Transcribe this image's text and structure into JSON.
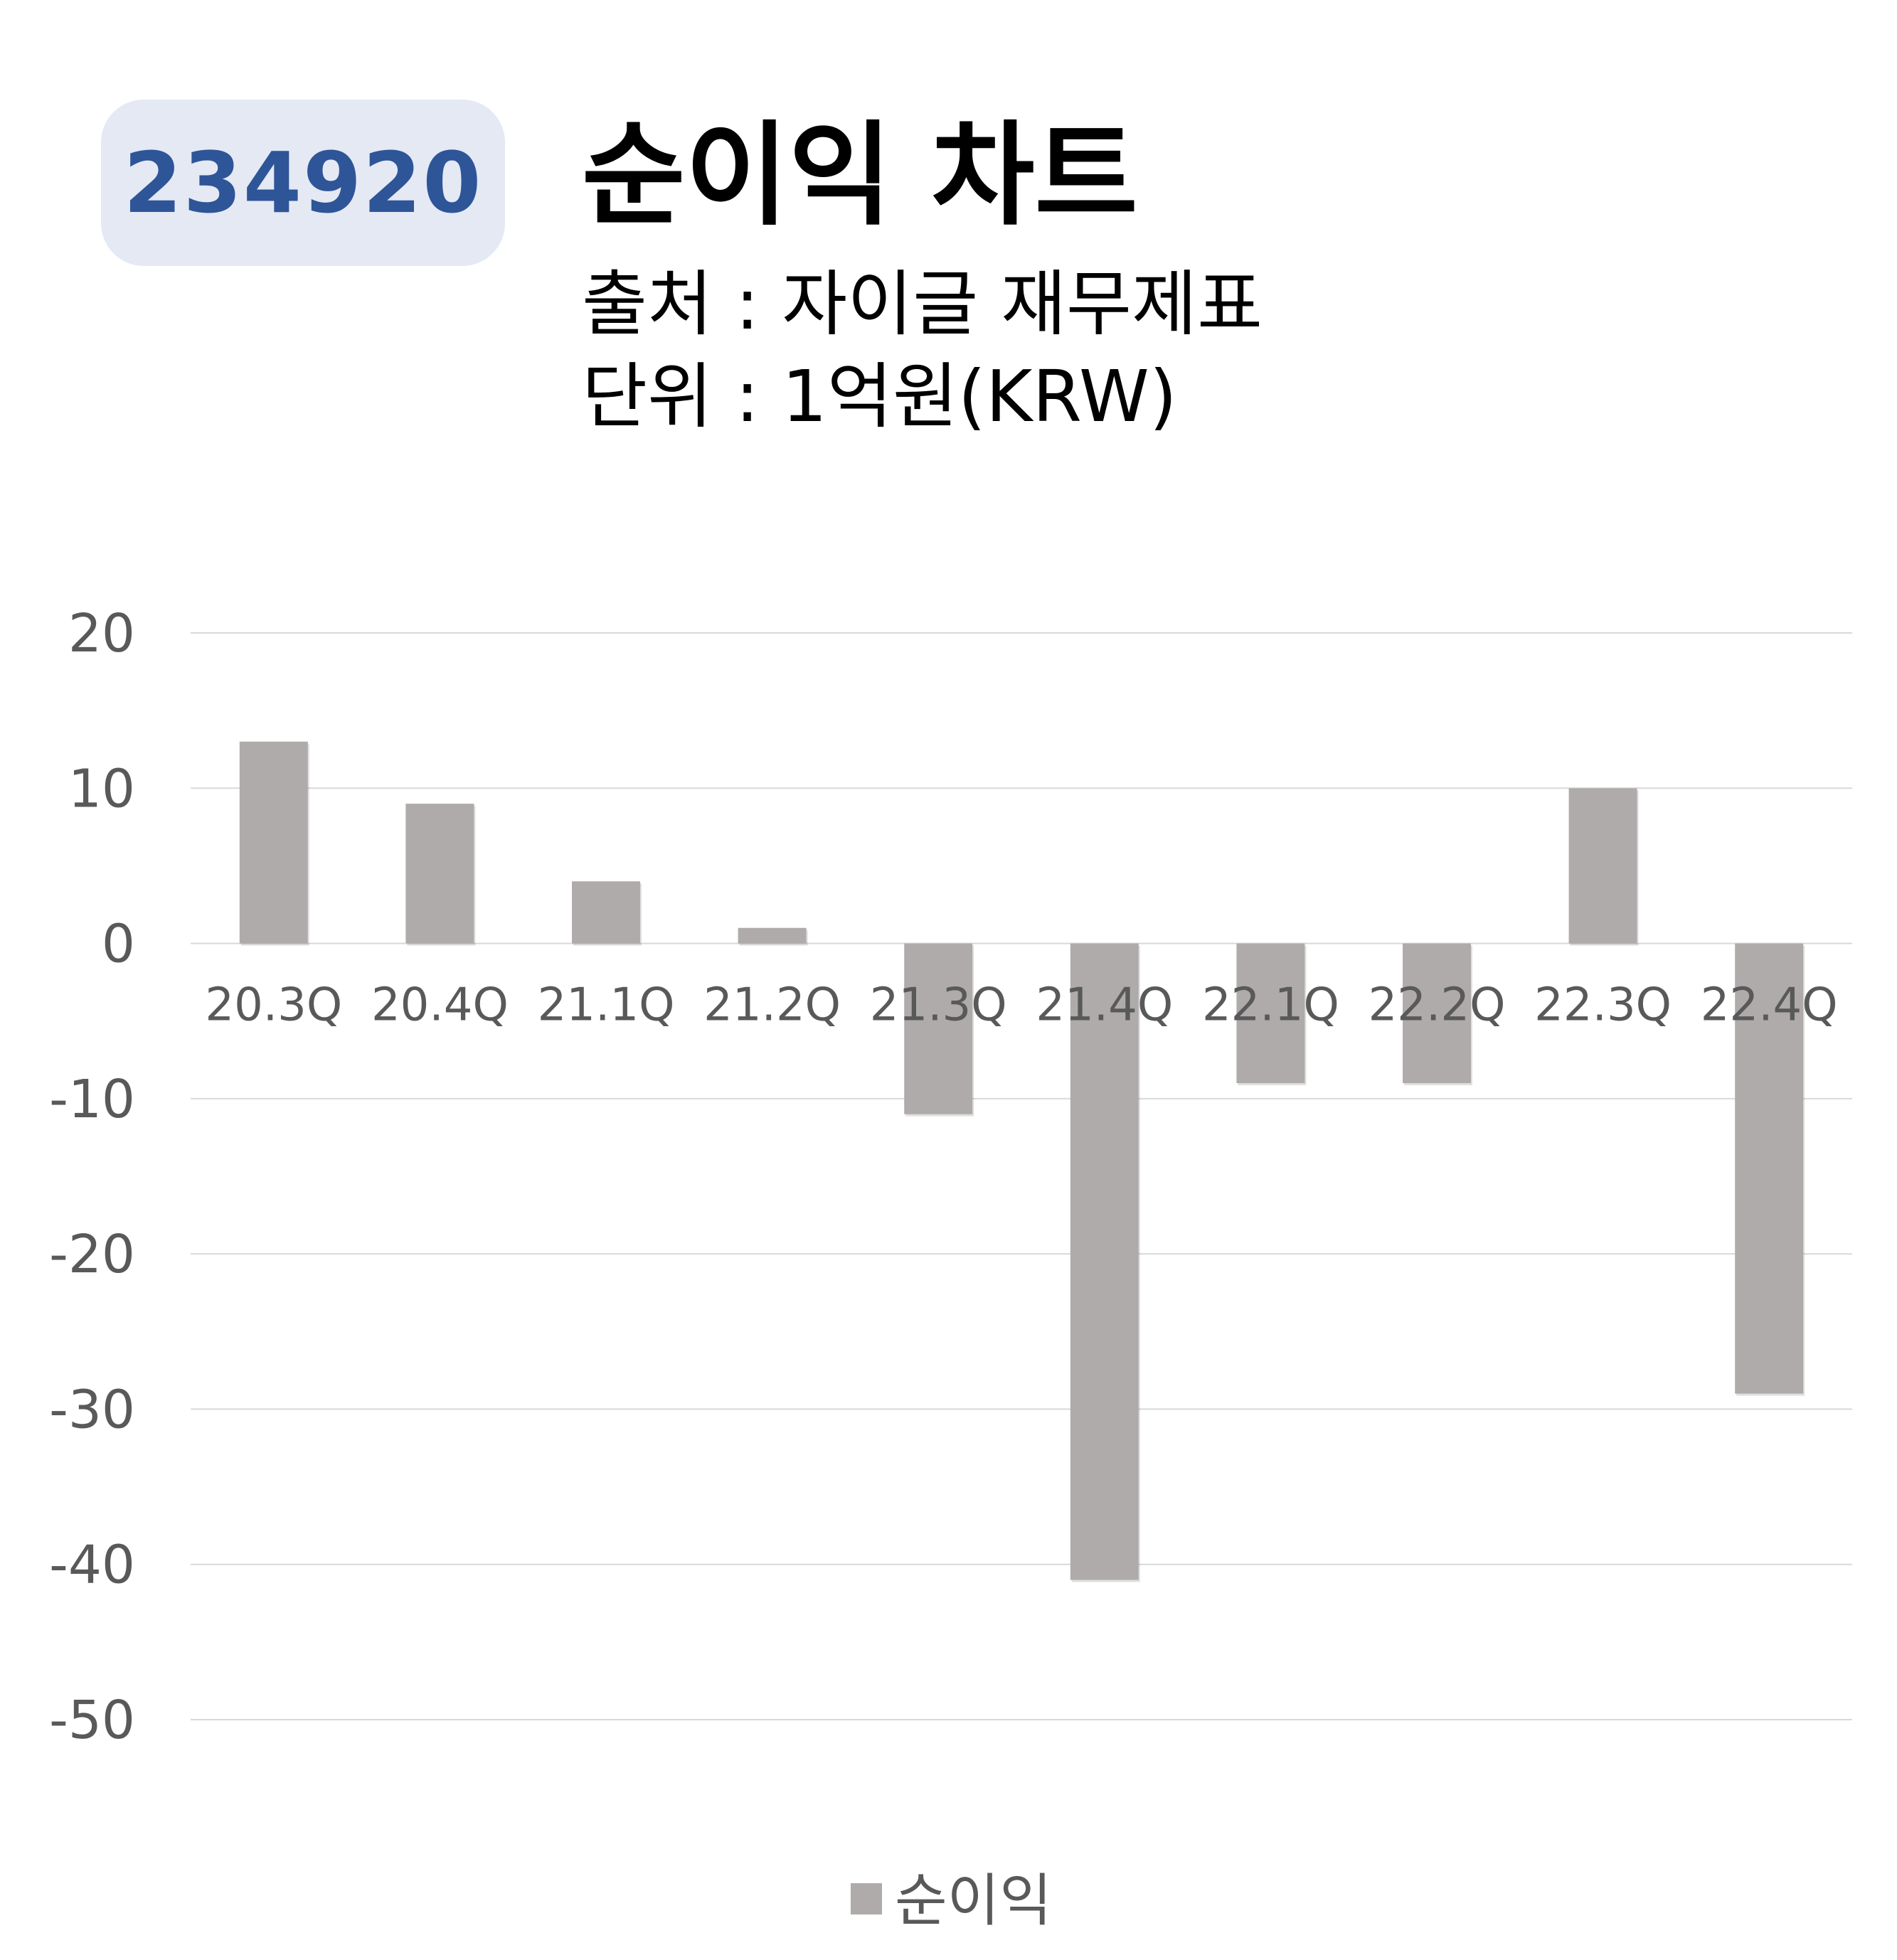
{
  "header": {
    "ticker": "234920",
    "title": "순이익 차트",
    "source_line": "출처 : 자이글 재무제표",
    "unit_line": "단위 : 1억원(KRW)"
  },
  "colors": {
    "bar": "#afabab",
    "badge_bg": "#e4e9f4",
    "badge_text": "#2e5597",
    "grid": "#d9d9d9",
    "tick_text": "#595959"
  },
  "chart_data": {
    "type": "bar",
    "categories": [
      "20.3Q",
      "20.4Q",
      "21.1Q",
      "21.2Q",
      "21.3Q",
      "21.4Q",
      "22.1Q",
      "22.2Q",
      "22.3Q",
      "22.4Q"
    ],
    "series": [
      {
        "name": "순이익",
        "values": [
          13,
          9,
          4,
          1,
          -11,
          -41,
          -9,
          -9,
          10,
          -29
        ]
      }
    ],
    "ylim": [
      -50,
      20
    ],
    "yticks": [
      20,
      10,
      0,
      -10,
      -20,
      -30,
      -40,
      -50
    ],
    "grid": true,
    "legend_position": "bottom"
  }
}
